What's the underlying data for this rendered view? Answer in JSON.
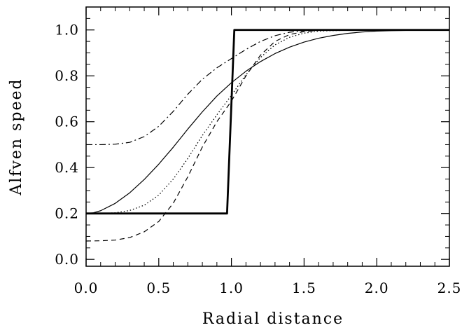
{
  "chart_data": {
    "type": "line",
    "title": "",
    "xlabel": "Radial distance",
    "ylabel": "Alfven speed",
    "xlim": [
      0.0,
      2.5
    ],
    "ylim": [
      -0.03,
      1.1
    ],
    "grid": false,
    "legend": "none",
    "x_ticks": [
      "0.0",
      "0.5",
      "1.0",
      "1.5",
      "2.0",
      "2.5"
    ],
    "y_ticks": [
      "0.0",
      "0.2",
      "0.4",
      "0.6",
      "0.8",
      "1.0"
    ],
    "series": [
      {
        "style": "step",
        "color": "#000000",
        "x": [
          0.0,
          0.05,
          0.1,
          0.2,
          0.3,
          0.4,
          0.5,
          0.6,
          0.7,
          0.8,
          0.9,
          0.97,
          1.02,
          1.1,
          1.2,
          1.4,
          1.6,
          1.8,
          2.0,
          2.2,
          2.5
        ],
        "y": [
          0.2,
          0.2,
          0.2,
          0.2,
          0.2,
          0.2,
          0.2,
          0.2,
          0.2,
          0.2,
          0.2,
          0.2,
          1.0,
          1.0,
          1.0,
          1.0,
          1.0,
          1.0,
          1.0,
          1.0,
          1.0
        ]
      },
      {
        "style": "solid",
        "color": "#000000",
        "x": [
          0.0,
          0.05,
          0.1,
          0.2,
          0.3,
          0.4,
          0.5,
          0.6,
          0.7,
          0.8,
          0.9,
          1.0,
          1.1,
          1.2,
          1.3,
          1.4,
          1.5,
          1.6,
          1.7,
          1.8,
          1.9,
          2.0,
          2.1,
          2.2,
          2.3,
          2.4,
          2.5
        ],
        "y": [
          0.2,
          0.203,
          0.212,
          0.244,
          0.29,
          0.348,
          0.415,
          0.489,
          0.568,
          0.643,
          0.712,
          0.77,
          0.82,
          0.862,
          0.897,
          0.925,
          0.947,
          0.964,
          0.976,
          0.985,
          0.991,
          0.995,
          0.997,
          0.998,
          0.999,
          1.0,
          1.0
        ]
      },
      {
        "style": "dotted",
        "color": "#000000",
        "x": [
          0.0,
          0.1,
          0.2,
          0.3,
          0.4,
          0.5,
          0.6,
          0.7,
          0.8,
          0.9,
          1.0,
          1.1,
          1.2,
          1.3,
          1.4,
          1.5,
          1.6,
          1.8,
          2.0,
          2.5
        ],
        "y": [
          0.2,
          0.2,
          0.203,
          0.213,
          0.236,
          0.28,
          0.35,
          0.44,
          0.54,
          0.63,
          0.715,
          0.805,
          0.88,
          0.935,
          0.968,
          0.986,
          0.995,
          0.999,
          1.0,
          1.0
        ]
      },
      {
        "style": "dashed",
        "color": "#000000",
        "x": [
          0.0,
          0.1,
          0.2,
          0.3,
          0.4,
          0.5,
          0.6,
          0.7,
          0.8,
          0.9,
          1.0,
          1.1,
          1.2,
          1.3,
          1.4,
          1.5,
          1.6,
          1.8,
          2.0,
          2.5
        ],
        "y": [
          0.08,
          0.081,
          0.084,
          0.095,
          0.12,
          0.165,
          0.245,
          0.36,
          0.49,
          0.6,
          0.69,
          0.8,
          0.89,
          0.95,
          0.98,
          0.993,
          0.998,
          1.0,
          1.0,
          1.0
        ]
      },
      {
        "style": "dashdot",
        "color": "#000000",
        "x": [
          0.0,
          0.1,
          0.2,
          0.3,
          0.4,
          0.5,
          0.6,
          0.7,
          0.8,
          0.9,
          1.0,
          1.1,
          1.2,
          1.3,
          1.4,
          1.5,
          1.6,
          1.8,
          2.0,
          2.5
        ],
        "y": [
          0.5,
          0.5,
          0.502,
          0.51,
          0.535,
          0.58,
          0.645,
          0.72,
          0.785,
          0.835,
          0.875,
          0.915,
          0.95,
          0.975,
          0.99,
          0.997,
          1.0,
          1.0,
          1.0,
          1.0
        ]
      }
    ]
  }
}
